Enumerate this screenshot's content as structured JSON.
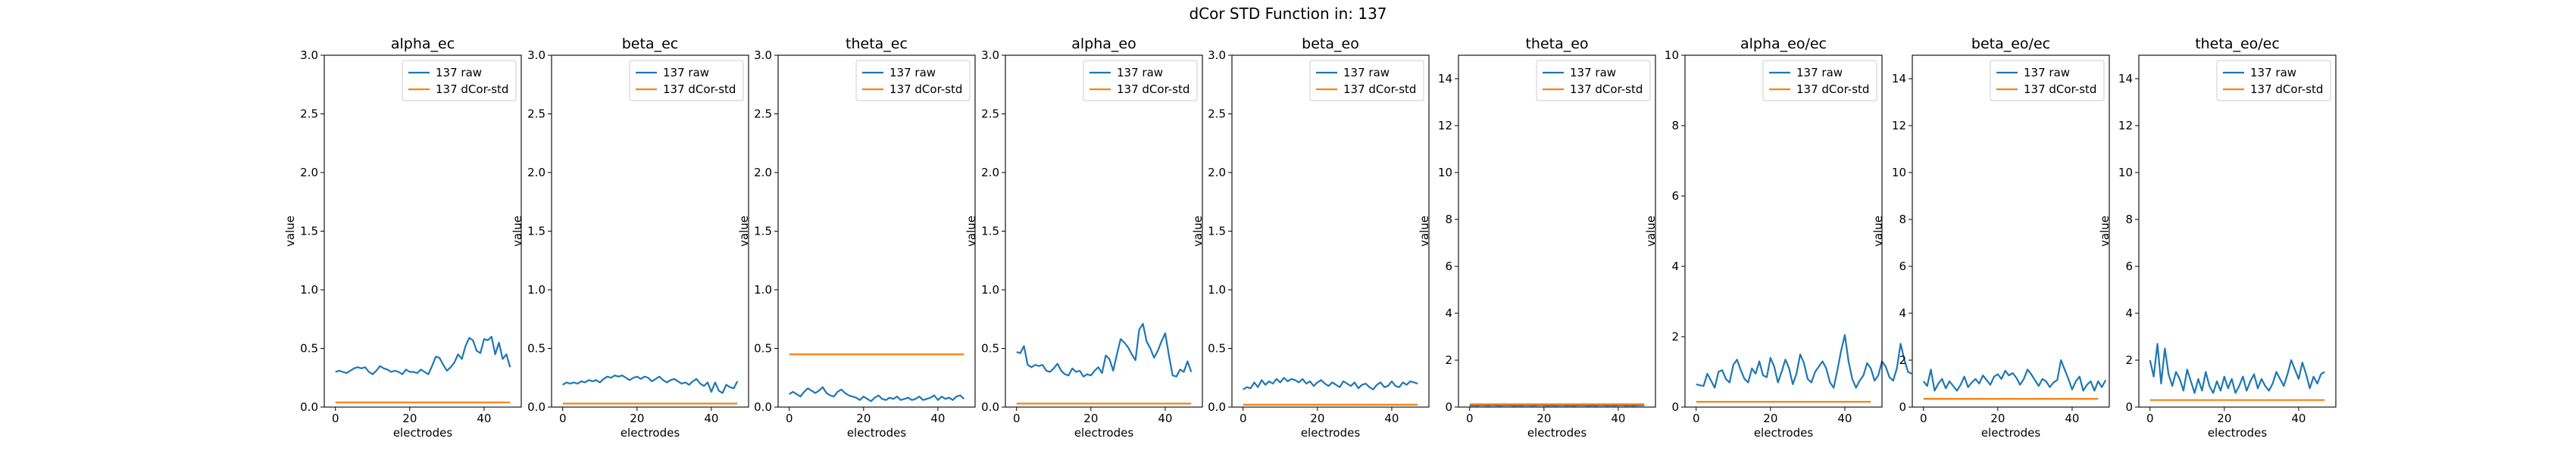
{
  "figure": {
    "suptitle": "dCor STD Function in: 137"
  },
  "colors": {
    "raw": "#1f77b4",
    "std": "#ff7f0e"
  },
  "chart_data": [
    {
      "type": "line",
      "title": "alpha_ec",
      "xlabel": "electrodes",
      "ylabel": "value",
      "xlim": [
        -3,
        50
      ],
      "ylim": [
        0,
        3.0
      ],
      "xticks": [
        0,
        20,
        40
      ],
      "yticks": [
        0.0,
        0.5,
        1.0,
        1.5,
        2.0,
        2.5,
        3.0
      ],
      "ytick_labels": [
        "0.0",
        "0.5",
        "1.0",
        "1.5",
        "2.0",
        "2.5",
        "3.0"
      ],
      "grid": false,
      "legend": "top-right",
      "series": [
        {
          "name": "137 raw",
          "values": [
            0.3,
            0.31,
            0.3,
            0.29,
            0.31,
            0.33,
            0.34,
            0.33,
            0.34,
            0.3,
            0.28,
            0.31,
            0.35,
            0.33,
            0.32,
            0.3,
            0.31,
            0.3,
            0.28,
            0.32,
            0.3,
            0.3,
            0.29,
            0.32,
            0.3,
            0.28,
            0.35,
            0.43,
            0.42,
            0.36,
            0.31,
            0.34,
            0.38,
            0.45,
            0.41,
            0.52,
            0.59,
            0.57,
            0.48,
            0.46,
            0.58,
            0.57,
            0.6,
            0.45,
            0.55,
            0.41,
            0.45,
            0.34
          ]
        },
        {
          "name": "137 dCor-std",
          "values": [
            0.04,
            0.04
          ]
        }
      ]
    },
    {
      "type": "line",
      "title": "beta_ec",
      "xlabel": "electrodes",
      "ylabel": "value",
      "xlim": [
        -3,
        50
      ],
      "ylim": [
        0,
        3.0
      ],
      "xticks": [
        0,
        20,
        40
      ],
      "yticks": [
        0.0,
        0.5,
        1.0,
        1.5,
        2.0,
        2.5,
        3.0
      ],
      "ytick_labels": [
        "0.0",
        "0.5",
        "1.0",
        "1.5",
        "2.0",
        "2.5",
        "3.0"
      ],
      "grid": false,
      "legend": "top-right",
      "series": [
        {
          "name": "137 raw",
          "values": [
            0.19,
            0.21,
            0.2,
            0.21,
            0.2,
            0.22,
            0.21,
            0.23,
            0.22,
            0.23,
            0.21,
            0.24,
            0.26,
            0.25,
            0.27,
            0.26,
            0.27,
            0.25,
            0.23,
            0.25,
            0.26,
            0.24,
            0.26,
            0.25,
            0.22,
            0.24,
            0.26,
            0.23,
            0.21,
            0.23,
            0.24,
            0.22,
            0.2,
            0.21,
            0.19,
            0.22,
            0.24,
            0.2,
            0.18,
            0.21,
            0.13,
            0.21,
            0.14,
            0.12,
            0.19,
            0.17,
            0.16,
            0.22
          ]
        },
        {
          "name": "137 dCor-std",
          "values": [
            0.03,
            0.03
          ]
        }
      ]
    },
    {
      "type": "line",
      "title": "theta_ec",
      "xlabel": "electrodes",
      "ylabel": "value",
      "xlim": [
        -3,
        50
      ],
      "ylim": [
        0,
        3.0
      ],
      "xticks": [
        0,
        20,
        40
      ],
      "yticks": [
        0.0,
        0.5,
        1.0,
        1.5,
        2.0,
        2.5,
        3.0
      ],
      "ytick_labels": [
        "0.0",
        "0.5",
        "1.0",
        "1.5",
        "2.0",
        "2.5",
        "3.0"
      ],
      "grid": false,
      "legend": "top-right",
      "series": [
        {
          "name": "137 raw",
          "values": [
            0.11,
            0.13,
            0.11,
            0.09,
            0.13,
            0.16,
            0.14,
            0.12,
            0.14,
            0.17,
            0.12,
            0.1,
            0.09,
            0.13,
            0.15,
            0.12,
            0.1,
            0.09,
            0.08,
            0.06,
            0.09,
            0.07,
            0.05,
            0.08,
            0.1,
            0.07,
            0.06,
            0.08,
            0.07,
            0.09,
            0.06,
            0.07,
            0.08,
            0.06,
            0.07,
            0.09,
            0.06,
            0.07,
            0.08,
            0.1,
            0.06,
            0.09,
            0.07,
            0.08,
            0.06,
            0.09,
            0.1,
            0.07
          ]
        },
        {
          "name": "137 dCor-std",
          "values": [
            0.45,
            0.45
          ]
        }
      ]
    },
    {
      "type": "line",
      "title": "alpha_eo",
      "xlabel": "electrodes",
      "ylabel": "value",
      "xlim": [
        -3,
        50
      ],
      "ylim": [
        0,
        3.0
      ],
      "xticks": [
        0,
        20,
        40
      ],
      "yticks": [
        0.0,
        0.5,
        1.0,
        1.5,
        2.0,
        2.5,
        3.0
      ],
      "ytick_labels": [
        "0.0",
        "0.5",
        "1.0",
        "1.5",
        "2.0",
        "2.5",
        "3.0"
      ],
      "grid": false,
      "legend": "top-right",
      "series": [
        {
          "name": "137 raw",
          "values": [
            0.47,
            0.46,
            0.52,
            0.36,
            0.34,
            0.36,
            0.35,
            0.36,
            0.31,
            0.3,
            0.33,
            0.37,
            0.31,
            0.28,
            0.27,
            0.33,
            0.3,
            0.31,
            0.26,
            0.28,
            0.27,
            0.31,
            0.34,
            0.29,
            0.44,
            0.41,
            0.31,
            0.45,
            0.58,
            0.55,
            0.51,
            0.45,
            0.4,
            0.66,
            0.71,
            0.56,
            0.5,
            0.42,
            0.48,
            0.56,
            0.63,
            0.44,
            0.27,
            0.26,
            0.32,
            0.3,
            0.39,
            0.3
          ]
        },
        {
          "name": "137 dCor-std",
          "values": [
            0.03,
            0.03
          ]
        }
      ]
    },
    {
      "type": "line",
      "title": "beta_eo",
      "xlabel": "electrodes",
      "ylabel": "value",
      "xlim": [
        -3,
        50
      ],
      "ylim": [
        0,
        3.0
      ],
      "xticks": [
        0,
        20,
        40
      ],
      "yticks": [
        0.0,
        0.5,
        1.0,
        1.5,
        2.0,
        2.5,
        3.0
      ],
      "ytick_labels": [
        "0.0",
        "0.5",
        "1.0",
        "1.5",
        "2.0",
        "2.5",
        "3.0"
      ],
      "grid": false,
      "legend": "top-right",
      "series": [
        {
          "name": "137 raw",
          "values": [
            0.15,
            0.17,
            0.16,
            0.21,
            0.17,
            0.23,
            0.19,
            0.22,
            0.2,
            0.24,
            0.21,
            0.25,
            0.22,
            0.24,
            0.23,
            0.21,
            0.24,
            0.2,
            0.22,
            0.18,
            0.21,
            0.23,
            0.2,
            0.18,
            0.21,
            0.19,
            0.17,
            0.22,
            0.2,
            0.18,
            0.21,
            0.16,
            0.19,
            0.2,
            0.17,
            0.15,
            0.19,
            0.21,
            0.17,
            0.18,
            0.22,
            0.18,
            0.17,
            0.21,
            0.19,
            0.22,
            0.21,
            0.2
          ]
        },
        {
          "name": "137 dCor-std",
          "values": [
            0.02,
            0.02
          ]
        }
      ]
    },
    {
      "type": "line",
      "title": "theta_eo",
      "xlabel": "electrodes",
      "ylabel": "value",
      "xlim": [
        -3,
        50
      ],
      "ylim": [
        0,
        15
      ],
      "xticks": [
        0,
        20,
        40
      ],
      "yticks": [
        0,
        2,
        4,
        6,
        8,
        10,
        12,
        14
      ],
      "ytick_labels": [
        "0",
        "2",
        "4",
        "6",
        "8",
        "10",
        "12",
        "14"
      ],
      "grid": false,
      "legend": "top-right",
      "series": [
        {
          "name": "137 raw",
          "values": [
            0.06,
            0.07,
            0.06,
            0.08,
            0.07,
            0.06,
            0.08,
            0.07,
            0.06,
            0.07,
            0.08,
            0.07,
            0.06,
            0.07,
            0.06,
            0.08,
            0.07,
            0.06,
            0.07,
            0.08,
            0.07,
            0.06,
            0.07,
            0.06,
            0.07,
            0.08,
            0.06,
            0.07,
            0.06,
            0.07,
            0.08,
            0.07,
            0.06,
            0.07,
            0.06,
            0.08,
            0.07,
            0.06,
            0.07,
            0.06,
            0.07,
            0.08,
            0.06,
            0.07,
            0.06,
            0.07,
            0.08,
            0.07
          ]
        },
        {
          "name": "137 dCor-std",
          "values": [
            0.12,
            0.12
          ]
        }
      ]
    },
    {
      "type": "line",
      "title": "alpha_eo/ec",
      "xlabel": "electrodes",
      "ylabel": "value",
      "xlim": [
        -3,
        50
      ],
      "ylim": [
        0,
        10
      ],
      "xticks": [
        0,
        20,
        40
      ],
      "yticks": [
        0,
        2,
        4,
        6,
        8,
        10
      ],
      "ytick_labels": [
        "0",
        "2",
        "4",
        "6",
        "8",
        "10"
      ],
      "grid": false,
      "legend": "top-right",
      "series": [
        {
          "name": "137 raw",
          "values": [
            0.65,
            0.62,
            0.6,
            0.95,
            0.75,
            0.55,
            1.0,
            1.05,
            0.8,
            0.7,
            1.2,
            1.35,
            1.05,
            0.8,
            0.7,
            1.1,
            0.95,
            1.3,
            0.9,
            0.85,
            1.4,
            1.15,
            0.7,
            1.0,
            1.35,
            1.1,
            0.65,
            0.95,
            1.5,
            1.25,
            0.8,
            0.7,
            1.0,
            1.15,
            1.3,
            1.1,
            0.7,
            0.55,
            1.05,
            1.6,
            2.05,
            1.3,
            0.8,
            0.55,
            0.75,
            0.9,
            1.25,
            1.1,
            0.75,
            0.9,
            1.3,
            1.15,
            0.85,
            0.75,
            1.1,
            1.8,
            1.35,
            1.0,
            0.95
          ]
        },
        {
          "name": "137 dCor-std",
          "values": [
            0.15,
            0.15
          ]
        }
      ]
    },
    {
      "type": "line",
      "title": "beta_eo/ec",
      "xlabel": "electrodes",
      "ylabel": "value",
      "xlim": [
        -3,
        50
      ],
      "ylim": [
        0,
        15
      ],
      "xticks": [
        0,
        20,
        40
      ],
      "yticks": [
        0,
        2,
        4,
        6,
        8,
        10,
        12,
        14
      ],
      "ytick_labels": [
        "0",
        "2",
        "4",
        "6",
        "8",
        "10",
        "12",
        "14"
      ],
      "grid": false,
      "legend": "top-right",
      "series": [
        {
          "name": "137 raw",
          "values": [
            1.1,
            0.9,
            1.6,
            0.7,
            1.0,
            1.2,
            0.8,
            1.1,
            0.9,
            0.7,
            0.95,
            1.3,
            0.85,
            1.05,
            1.2,
            1.0,
            1.35,
            1.15,
            0.95,
            1.3,
            1.4,
            1.2,
            1.55,
            1.35,
            1.45,
            1.25,
            0.95,
            1.2,
            1.6,
            1.4,
            1.15,
            0.9,
            1.2,
            1.1,
            0.85,
            1.05,
            1.15,
            2.0,
            1.6,
            1.2,
            0.75,
            1.1,
            1.3,
            0.7,
            0.95,
            1.1,
            0.7,
            1.1,
            0.85,
            1.15
          ]
        },
        {
          "name": "137 dCor-std",
          "values": [
            0.35,
            0.35
          ]
        }
      ]
    },
    {
      "type": "line",
      "title": "theta_eo/ec",
      "xlabel": "electrodes",
      "ylabel": "value",
      "xlim": [
        -3,
        50
      ],
      "ylim": [
        0,
        15
      ],
      "xticks": [
        0,
        20,
        40
      ],
      "yticks": [
        0,
        2,
        4,
        6,
        8,
        10,
        12,
        14
      ],
      "ytick_labels": [
        "0",
        "2",
        "4",
        "6",
        "8",
        "10",
        "12",
        "14"
      ],
      "grid": false,
      "legend": "top-right",
      "series": [
        {
          "name": "137 raw",
          "values": [
            2.0,
            1.3,
            2.7,
            1.0,
            2.5,
            1.4,
            0.9,
            1.5,
            1.2,
            0.7,
            1.6,
            1.1,
            0.6,
            1.2,
            0.7,
            1.5,
            0.9,
            0.6,
            1.1,
            0.7,
            1.3,
            0.8,
            1.2,
            0.6,
            0.9,
            1.3,
            0.7,
            1.1,
            1.4,
            0.8,
            1.2,
            0.9,
            0.7,
            1.0,
            1.5,
            1.2,
            0.9,
            1.4,
            2.0,
            1.6,
            1.2,
            1.9,
            1.4,
            0.8,
            1.3,
            1.0,
            1.4,
            1.5
          ]
        },
        {
          "name": "137 dCor-std",
          "values": [
            0.3,
            0.3
          ]
        }
      ]
    }
  ]
}
